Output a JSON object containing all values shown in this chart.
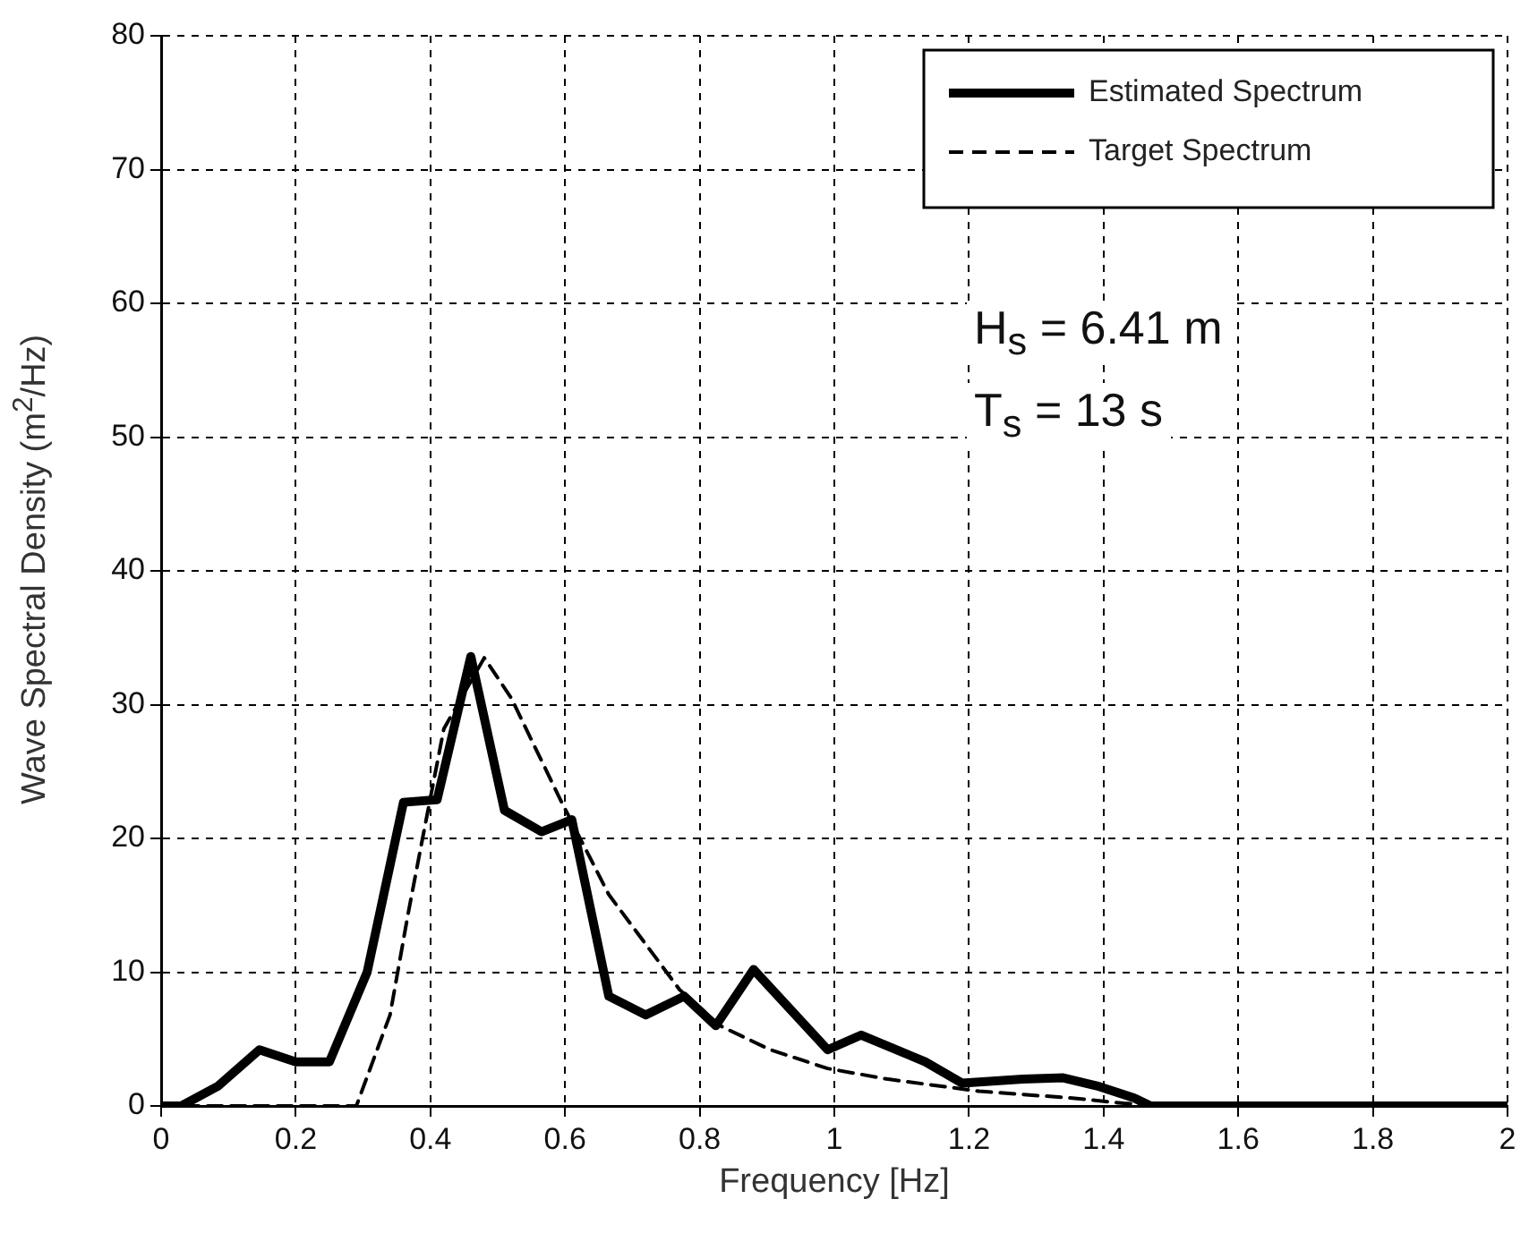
{
  "chart_data": {
    "type": "line",
    "xlabel": "Frequency [Hz]",
    "ylabel": "Wave Spectral Density (m$^{2}$/Hz)",
    "xlim": [
      0,
      2
    ],
    "ylim": [
      0,
      80
    ],
    "xticks": [
      0,
      0.2,
      0.4,
      0.6,
      0.8,
      1,
      1.2,
      1.4,
      1.6,
      1.8,
      2
    ],
    "yticks": [
      0,
      10,
      20,
      30,
      40,
      50,
      60,
      70,
      80
    ],
    "grid": true,
    "legend": "top right",
    "marker": "none",
    "annotations": [
      "H$_{s}$ = 6.41 m",
      "T$_{s}$ = 13 s"
    ],
    "series": [
      {
        "name": "Estimated Spectrum",
        "color": "#000000",
        "line_style": "solid",
        "x": [
          0,
          0.03,
          0.085,
          0.146,
          0.2,
          0.25,
          0.306,
          0.36,
          0.41,
          0.46,
          0.51,
          0.565,
          0.61,
          0.665,
          0.72,
          0.777,
          0.824,
          0.88,
          0.99,
          1.04,
          1.135,
          1.19,
          1.28,
          1.34,
          1.39,
          1.445,
          1.47,
          2
        ],
        "values": [
          0,
          0,
          1.5,
          4.2,
          3.3,
          3.3,
          10,
          22.7,
          22.9,
          33.6,
          22.1,
          20.5,
          21.4,
          8.2,
          6.8,
          8.2,
          6,
          10.2,
          4.2,
          5.3,
          3.3,
          1.7,
          2,
          2.1,
          1.5,
          0.6,
          0,
          0
        ]
      },
      {
        "name": "Target Spectrum",
        "color": "#000000",
        "line_style": "dashed",
        "x": [
          0,
          0.29,
          0.34,
          0.367,
          0.386,
          0.42,
          0.48,
          0.52,
          0.593,
          0.665,
          0.77,
          0.83,
          0.905,
          0.99,
          1.08,
          1.215,
          1.35,
          1.43,
          1.5,
          2
        ],
        "values": [
          0,
          0,
          6.8,
          14.4,
          19.4,
          28.2,
          33.5,
          30.5,
          22.9,
          15.8,
          8.7,
          6,
          4.2,
          2.8,
          2,
          1.1,
          0.6,
          0.2,
          0,
          0
        ]
      }
    ]
  }
}
